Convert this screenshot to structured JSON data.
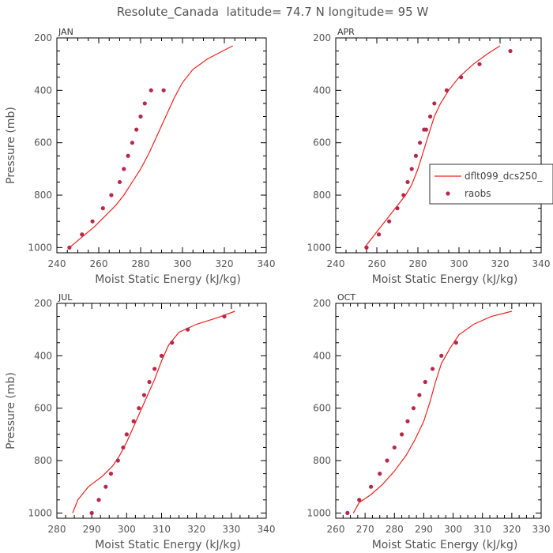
{
  "figure": {
    "title": "Resolute_Canada  latitude= 74.7 N longitude= 95 W",
    "line_color": "#e8231d",
    "dot_color": "#b8284c"
  },
  "legend": {
    "items": [
      "dflt099_dcs250_",
      "raobs"
    ]
  },
  "chart_data": [
    {
      "type": "line",
      "panel": "JAN",
      "xlabel": "Moist Static Energy (kJ/kg)",
      "ylabel": "Pressure (mb)",
      "xlim": [
        240,
        340
      ],
      "ylim": [
        200,
        1020
      ],
      "y_inverted": true,
      "xticks": [
        240,
        260,
        280,
        300,
        320,
        340
      ],
      "yticks": [
        200,
        400,
        600,
        800,
        1000
      ],
      "series": [
        {
          "name": "dflt099_dcs250_",
          "kind": "line",
          "x": [
            246,
            252,
            258,
            263,
            268,
            272,
            276,
            280,
            284,
            288,
            292,
            296,
            300,
            305,
            312,
            324
          ],
          "y": [
            1000,
            960,
            920,
            880,
            840,
            800,
            750,
            700,
            640,
            570,
            500,
            430,
            370,
            320,
            280,
            230
          ]
        },
        {
          "name": "raobs",
          "kind": "scatter",
          "x": [
            246,
            252,
            257,
            262,
            266,
            270,
            272,
            274,
            276,
            278,
            280,
            282,
            285,
            291
          ],
          "y": [
            1000,
            950,
            900,
            850,
            800,
            750,
            700,
            650,
            600,
            550,
            500,
            450,
            400,
            400
          ]
        }
      ]
    },
    {
      "type": "line",
      "panel": "APR",
      "xlabel": "Moist Static Energy (kJ/kg)",
      "ylabel": "",
      "xlim": [
        240,
        340
      ],
      "ylim": [
        200,
        1020
      ],
      "y_inverted": true,
      "xticks": [
        240,
        260,
        280,
        300,
        320,
        340
      ],
      "yticks": [
        200,
        400,
        600,
        800,
        1000
      ],
      "series": [
        {
          "name": "dflt099_dcs250_",
          "kind": "line",
          "x": [
            254,
            258,
            262,
            266,
            270,
            274,
            277,
            280,
            282,
            284,
            286,
            288,
            291,
            295,
            300,
            307,
            314,
            320
          ],
          "y": [
            1000,
            960,
            920,
            880,
            840,
            800,
            760,
            700,
            650,
            600,
            550,
            500,
            450,
            400,
            350,
            300,
            260,
            230
          ]
        },
        {
          "name": "raobs",
          "kind": "scatter",
          "x": [
            255,
            261,
            266,
            270,
            273,
            275,
            277,
            279,
            281,
            283,
            284,
            286,
            288,
            294,
            301,
            310,
            325
          ],
          "y": [
            1000,
            950,
            900,
            850,
            800,
            750,
            700,
            650,
            600,
            550,
            550,
            500,
            450,
            400,
            350,
            300,
            250
          ]
        }
      ]
    },
    {
      "type": "line",
      "panel": "JUL",
      "xlabel": "Moist Static Energy (kJ/kg)",
      "ylabel": "Pressure (mb)",
      "xlim": [
        280,
        340
      ],
      "ylim": [
        200,
        1020
      ],
      "y_inverted": true,
      "xticks": [
        280,
        290,
        300,
        310,
        320,
        330,
        340
      ],
      "yticks": [
        200,
        400,
        600,
        800,
        1000
      ],
      "series": [
        {
          "name": "dflt099_dcs250_",
          "kind": "line",
          "x": [
            284.5,
            286,
            289,
            293,
            296,
            298,
            300,
            302,
            304,
            306,
            308,
            310,
            312,
            315,
            320,
            326,
            331
          ],
          "y": [
            1000,
            950,
            900,
            860,
            820,
            780,
            730,
            670,
            610,
            550,
            490,
            420,
            360,
            310,
            280,
            255,
            230
          ]
        },
        {
          "name": "raobs",
          "kind": "scatter",
          "x": [
            290,
            292,
            294,
            295.5,
            297.5,
            299,
            300,
            302,
            303.5,
            305,
            306.5,
            308,
            310,
            313,
            317.5,
            328
          ],
          "y": [
            1000,
            950,
            900,
            850,
            800,
            750,
            700,
            650,
            600,
            550,
            500,
            450,
            400,
            350,
            300,
            250
          ]
        }
      ]
    },
    {
      "type": "line",
      "panel": "OCT",
      "xlabel": "Moist Static Energy (kJ/kg)",
      "ylabel": "",
      "xlim": [
        260,
        330
      ],
      "ylim": [
        200,
        1020
      ],
      "y_inverted": true,
      "xticks": [
        260,
        270,
        280,
        290,
        300,
        310,
        320,
        330
      ],
      "yticks": [
        200,
        400,
        600,
        800,
        1000
      ],
      "series": [
        {
          "name": "dflt099_dcs250_",
          "kind": "line",
          "x": [
            266,
            268,
            272,
            276,
            280,
            284,
            287,
            290,
            292,
            294,
            296,
            299,
            302,
            307,
            313,
            320
          ],
          "y": [
            1000,
            960,
            930,
            890,
            840,
            780,
            720,
            650,
            580,
            500,
            430,
            370,
            320,
            280,
            250,
            230
          ]
        },
        {
          "name": "raobs",
          "kind": "scatter",
          "x": [
            264,
            268,
            272,
            275,
            277.5,
            280,
            282.5,
            284.5,
            286.5,
            288.5,
            290.5,
            293,
            296,
            301
          ],
          "y": [
            1000,
            950,
            900,
            850,
            800,
            750,
            700,
            650,
            600,
            550,
            500,
            450,
            400,
            350
          ]
        }
      ]
    }
  ]
}
